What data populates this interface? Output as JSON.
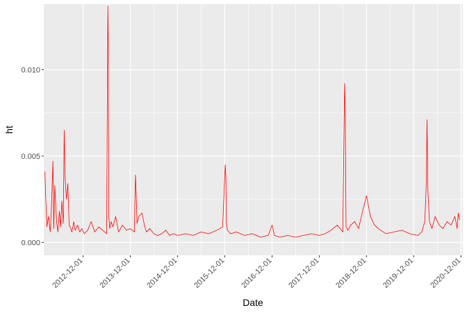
{
  "chart_data": {
    "type": "line",
    "xlabel": "Date",
    "ylabel": "ht",
    "x_range": [
      "2012-02-01",
      "2020-12-15"
    ],
    "ylim": [
      -0.00075,
      0.0138
    ],
    "x_ticks": [
      "2012-12-01",
      "2013-12-01",
      "2014-12-01",
      "2015-12-01",
      "2016-12-01",
      "2017-12-01",
      "2018-12-01",
      "2019-12-01",
      "2020-12-01"
    ],
    "y_ticks": [
      0.0,
      0.005,
      0.01
    ],
    "y_tick_labels": [
      "0.000",
      "0.005",
      "0.010"
    ],
    "grid": true,
    "background_color": "#ebebeb",
    "grid_color": "#ffffff",
    "series": [
      {
        "color": "#ff0000",
        "x": [
          "2012-02-10",
          "2012-02-16",
          "2012-02-25",
          "2012-03-08",
          "2012-03-22",
          "2012-04-01",
          "2012-04-12",
          "2012-04-18",
          "2012-04-26",
          "2012-05-10",
          "2012-05-20",
          "2012-06-01",
          "2012-06-10",
          "2012-06-20",
          "2012-07-01",
          "2012-07-08",
          "2012-07-15",
          "2012-07-25",
          "2012-08-05",
          "2012-08-15",
          "2012-08-28",
          "2012-09-05",
          "2012-09-20",
          "2012-10-01",
          "2012-10-20",
          "2012-11-05",
          "2012-11-20",
          "2012-12-10",
          "2013-01-05",
          "2013-02-01",
          "2013-03-01",
          "2013-04-01",
          "2013-05-01",
          "2013-06-01",
          "2013-06-10",
          "2013-06-14",
          "2013-06-18",
          "2013-06-25",
          "2013-07-05",
          "2013-07-20",
          "2013-08-10",
          "2013-09-01",
          "2013-10-01",
          "2013-11-01",
          "2013-12-01",
          "2014-01-01",
          "2014-01-10",
          "2014-01-15",
          "2014-01-22",
          "2014-02-05",
          "2014-03-01",
          "2014-03-20",
          "2014-04-05",
          "2014-05-01",
          "2014-06-01",
          "2014-07-01",
          "2014-08-01",
          "2014-09-01",
          "2014-10-01",
          "2014-11-01",
          "2014-12-01",
          "2015-02-01",
          "2015-04-01",
          "2015-06-01",
          "2015-08-01",
          "2015-10-01",
          "2015-11-15",
          "2015-12-05",
          "2015-12-10",
          "2015-12-14",
          "2015-12-22",
          "2016-01-15",
          "2016-03-01",
          "2016-05-01",
          "2016-07-01",
          "2016-09-01",
          "2016-11-01",
          "2016-12-01",
          "2016-12-20",
          "2017-02-01",
          "2017-04-01",
          "2017-06-01",
          "2017-08-01",
          "2017-10-01",
          "2017-12-01",
          "2018-01-15",
          "2018-03-01",
          "2018-04-20",
          "2018-06-01",
          "2018-06-15",
          "2018-06-20",
          "2018-06-26",
          "2018-07-10",
          "2018-08-01",
          "2018-09-01",
          "2018-10-01",
          "2018-11-01",
          "2018-12-01",
          "2019-01-01",
          "2019-02-01",
          "2019-03-01",
          "2019-05-01",
          "2019-07-01",
          "2019-09-01",
          "2019-11-01",
          "2020-01-01",
          "2020-02-01",
          "2020-02-25",
          "2020-03-08",
          "2020-03-13",
          "2020-03-20",
          "2020-04-01",
          "2020-04-20",
          "2020-05-15",
          "2020-06-15",
          "2020-07-15",
          "2020-08-15",
          "2020-09-15",
          "2020-10-15",
          "2020-11-01",
          "2020-11-10",
          "2020-11-20"
        ],
        "y": [
          0.0041,
          0.0026,
          0.0009,
          0.0015,
          0.0006,
          0.0022,
          0.0047,
          0.0008,
          0.0033,
          0.0012,
          0.0006,
          0.0018,
          0.0009,
          0.0024,
          0.0011,
          0.0065,
          0.0038,
          0.0025,
          0.0034,
          0.001,
          0.0008,
          0.0006,
          0.0012,
          0.0007,
          0.001,
          0.0006,
          0.0008,
          0.0005,
          0.0007,
          0.0012,
          0.0006,
          0.0009,
          0.0007,
          0.0005,
          0.0137,
          0.0114,
          0.0015,
          0.0008,
          0.0012,
          0.0009,
          0.0015,
          0.0006,
          0.001,
          0.0007,
          0.0008,
          0.0006,
          0.0039,
          0.0029,
          0.0011,
          0.0015,
          0.0017,
          0.001,
          0.0006,
          0.0008,
          0.0005,
          0.0004,
          0.0005,
          0.0007,
          0.0004,
          0.0005,
          0.0004,
          0.0005,
          0.0004,
          0.0006,
          0.0005,
          0.0007,
          0.0009,
          0.0045,
          0.0038,
          0.0011,
          0.0007,
          0.0005,
          0.0006,
          0.0004,
          0.0005,
          0.0003,
          0.0004,
          0.001,
          0.0004,
          0.0003,
          0.0004,
          0.0003,
          0.0004,
          0.0005,
          0.0004,
          0.0005,
          0.0007,
          0.001,
          0.0006,
          0.0092,
          0.0077,
          0.0009,
          0.0007,
          0.001,
          0.0012,
          0.0008,
          0.0018,
          0.0027,
          0.0015,
          0.001,
          0.0008,
          0.0005,
          0.0006,
          0.0007,
          0.0005,
          0.0004,
          0.0006,
          0.0012,
          0.0035,
          0.0071,
          0.003,
          0.0012,
          0.0008,
          0.0015,
          0.001,
          0.0008,
          0.0012,
          0.001,
          0.0015,
          0.0008,
          0.0017,
          0.0013
        ]
      }
    ]
  }
}
